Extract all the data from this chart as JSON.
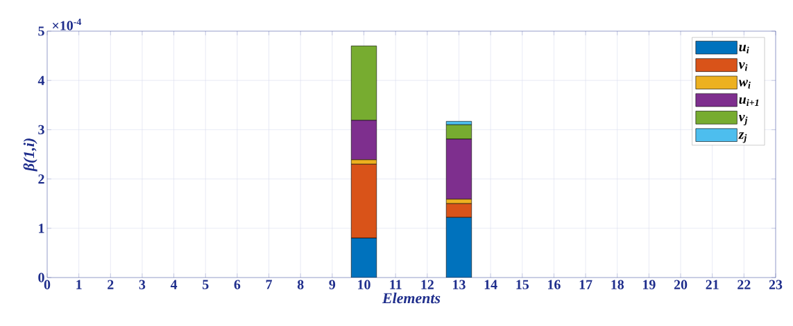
{
  "chart_data": {
    "type": "bar",
    "stacked": true,
    "xlabel": "Elements",
    "ylabel": "β(1,i)",
    "x": [
      1,
      2,
      3,
      4,
      5,
      6,
      7,
      8,
      9,
      10,
      11,
      12,
      13,
      14,
      15,
      16,
      17,
      18,
      19,
      20,
      21,
      22
    ],
    "series": [
      {
        "name": "u$_{i}$",
        "color": "#0072bd",
        "values": [
          0,
          0,
          0,
          0,
          0,
          0,
          0,
          0,
          0,
          0.8,
          0,
          0,
          1.22,
          0,
          0,
          0,
          0,
          0,
          0,
          0,
          0,
          0
        ]
      },
      {
        "name": "v$_{i}$",
        "color": "#d95319",
        "values": [
          0,
          0,
          0,
          0,
          0,
          0,
          0,
          0,
          0,
          1.5,
          0,
          0,
          0.28,
          0,
          0,
          0,
          0,
          0,
          0,
          0,
          0,
          0
        ]
      },
      {
        "name": "w$_{i}$",
        "color": "#edb120",
        "values": [
          0,
          0,
          0,
          0,
          0,
          0,
          0,
          0,
          0,
          0.09,
          0,
          0,
          0.09,
          0,
          0,
          0,
          0,
          0,
          0,
          0,
          0,
          0
        ]
      },
      {
        "name": "u$_{i+1}$",
        "color": "#7e2f8e",
        "values": [
          0,
          0,
          0,
          0,
          0,
          0,
          0,
          0,
          0,
          0.8,
          0,
          0,
          1.22,
          0,
          0,
          0,
          0,
          0,
          0,
          0,
          0,
          0
        ]
      },
      {
        "name": "v$_{j}$",
        "color": "#77ac30",
        "values": [
          0,
          0,
          0,
          0,
          0,
          0,
          0,
          0,
          0,
          1.51,
          0,
          0,
          0.29,
          0,
          0,
          0,
          0,
          0,
          0,
          0,
          0,
          0
        ]
      },
      {
        "name": "z$_{j}$",
        "color": "#4dbeee",
        "values": [
          0,
          0,
          0,
          0,
          0,
          0,
          0,
          0,
          0,
          0,
          0,
          0,
          0.07,
          0,
          0,
          0,
          0,
          0,
          0,
          0,
          0,
          0
        ]
      }
    ],
    "xlim": [
      0,
      23
    ],
    "xticks": [
      0,
      1,
      2,
      3,
      4,
      5,
      6,
      7,
      8,
      9,
      10,
      11,
      12,
      13,
      14,
      15,
      16,
      17,
      18,
      19,
      20,
      21,
      22,
      23
    ],
    "ylim": [
      0,
      5
    ],
    "yticks": [
      0,
      1,
      2,
      3,
      4,
      5
    ],
    "annotations": [
      "×10$^{-4}$"
    ],
    "grid": true,
    "legend": "top right"
  }
}
